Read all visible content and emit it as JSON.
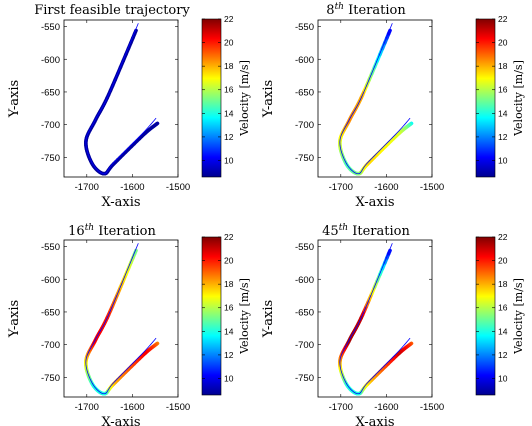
{
  "chart_data": [
    {
      "type": "line",
      "title": "First feasible trajectory",
      "xlabel": "X-axis",
      "ylabel": "Y-axis",
      "xlim": [
        -1750,
        -1500
      ],
      "ylim": [
        -780,
        -540
      ],
      "xticks": [
        -1700,
        -1600,
        -1500
      ],
      "yticks": [
        -550,
        -600,
        -650,
        -700,
        -750
      ],
      "reference_path": {
        "x": [
          -1548,
          -1576,
          -1641,
          -1662,
          -1688,
          -1702,
          -1681,
          -1652,
          -1587
        ],
        "y": [
          -690,
          -712,
          -758,
          -775,
          -759,
          -725,
          -692,
          -654,
          -545
        ]
      },
      "trajectory": {
        "x": [
          -1545,
          -1575,
          -1641,
          -1662,
          -1688,
          -1702,
          -1681,
          -1652,
          -1592
        ],
        "y": [
          -698,
          -715,
          -760,
          -775,
          -760,
          -726,
          -693,
          -654,
          -556
        ],
        "velocity": [
          9,
          9,
          9,
          9,
          9,
          9,
          9,
          9,
          9
        ]
      },
      "colorbar": {
        "label": "Velocity [m/s]",
        "range": [
          8.6,
          22
        ],
        "ticks": [
          10,
          12,
          14,
          16,
          18,
          20,
          22
        ]
      }
    },
    {
      "type": "line",
      "title_main": "8",
      "title_sup": "th",
      "title_rest": " Iteration",
      "xlabel": "X-axis",
      "ylabel": "Y-axis",
      "xlim": [
        -1750,
        -1500
      ],
      "ylim": [
        -780,
        -540
      ],
      "xticks": [
        -1700,
        -1600,
        -1500
      ],
      "yticks": [
        -550,
        -600,
        -650,
        -700,
        -750
      ],
      "reference_path": {
        "x": [
          -1548,
          -1576,
          -1641,
          -1662,
          -1688,
          -1702,
          -1681,
          -1652,
          -1587
        ],
        "y": [
          -690,
          -712,
          -758,
          -775,
          -759,
          -725,
          -692,
          -654,
          -545
        ]
      },
      "trajectory": {
        "x": [
          -1545,
          -1575,
          -1641,
          -1662,
          -1688,
          -1702,
          -1681,
          -1652,
          -1592
        ],
        "y": [
          -698,
          -715,
          -760,
          -775,
          -760,
          -726,
          -693,
          -654,
          -556
        ],
        "velocity": [
          13.5,
          16.5,
          17.5,
          15.5,
          14.5,
          16.5,
          18.5,
          18,
          10
        ]
      },
      "colorbar": {
        "label": "Velocity [m/s]",
        "range": [
          8.6,
          22
        ],
        "ticks": [
          10,
          12,
          14,
          16,
          18,
          20,
          22
        ]
      }
    },
    {
      "type": "line",
      "title_main": "16",
      "title_sup": "th",
      "title_rest": " Iteration",
      "xlabel": "X-axis",
      "ylabel": "Y-axis",
      "xlim": [
        -1750,
        -1500
      ],
      "ylim": [
        -780,
        -540
      ],
      "xticks": [
        -1700,
        -1600,
        -1500
      ],
      "yticks": [
        -550,
        -600,
        -650,
        -700,
        -750
      ],
      "reference_path": {
        "x": [
          -1548,
          -1576,
          -1641,
          -1662,
          -1688,
          -1702,
          -1681,
          -1652,
          -1587
        ],
        "y": [
          -690,
          -712,
          -758,
          -775,
          -759,
          -725,
          -692,
          -654,
          -545
        ]
      },
      "trajectory": {
        "x": [
          -1545,
          -1575,
          -1641,
          -1662,
          -1688,
          -1702,
          -1681,
          -1652,
          -1592
        ],
        "y": [
          -698,
          -715,
          -760,
          -775,
          -760,
          -726,
          -693,
          -654,
          -556
        ],
        "velocity": [
          18.5,
          20.5,
          18,
          14,
          14,
          17,
          20.5,
          20,
          15
        ]
      },
      "colorbar": {
        "label": "Velocity [m/s]",
        "range": [
          8.6,
          22
        ],
        "ticks": [
          10,
          12,
          14,
          16,
          18,
          20,
          22
        ]
      }
    },
    {
      "type": "line",
      "title_main": "45",
      "title_sup": "th",
      "title_rest": " Iteration",
      "xlabel": "X-axis",
      "ylabel": "Y-axis",
      "xlim": [
        -1750,
        -1500
      ],
      "ylim": [
        -780,
        -540
      ],
      "xticks": [
        -1700,
        -1600,
        -1500
      ],
      "yticks": [
        -550,
        -600,
        -650,
        -700,
        -750
      ],
      "reference_path": {
        "x": [
          -1548,
          -1576,
          -1641,
          -1662,
          -1688,
          -1702,
          -1681,
          -1652,
          -1587
        ],
        "y": [
          -690,
          -712,
          -758,
          -775,
          -759,
          -725,
          -692,
          -654,
          -545
        ]
      },
      "trajectory": {
        "x": [
          -1545,
          -1575,
          -1641,
          -1662,
          -1688,
          -1702,
          -1681,
          -1652,
          -1592
        ],
        "y": [
          -698,
          -715,
          -760,
          -775,
          -760,
          -726,
          -693,
          -654,
          -556
        ],
        "velocity": [
          19,
          21,
          17.5,
          14,
          14,
          18,
          21.5,
          21,
          10
        ]
      },
      "colorbar": {
        "label": "Velocity [m/s]",
        "range": [
          8.6,
          22
        ],
        "ticks": [
          10,
          12,
          14,
          16,
          18,
          20,
          22
        ]
      }
    }
  ]
}
